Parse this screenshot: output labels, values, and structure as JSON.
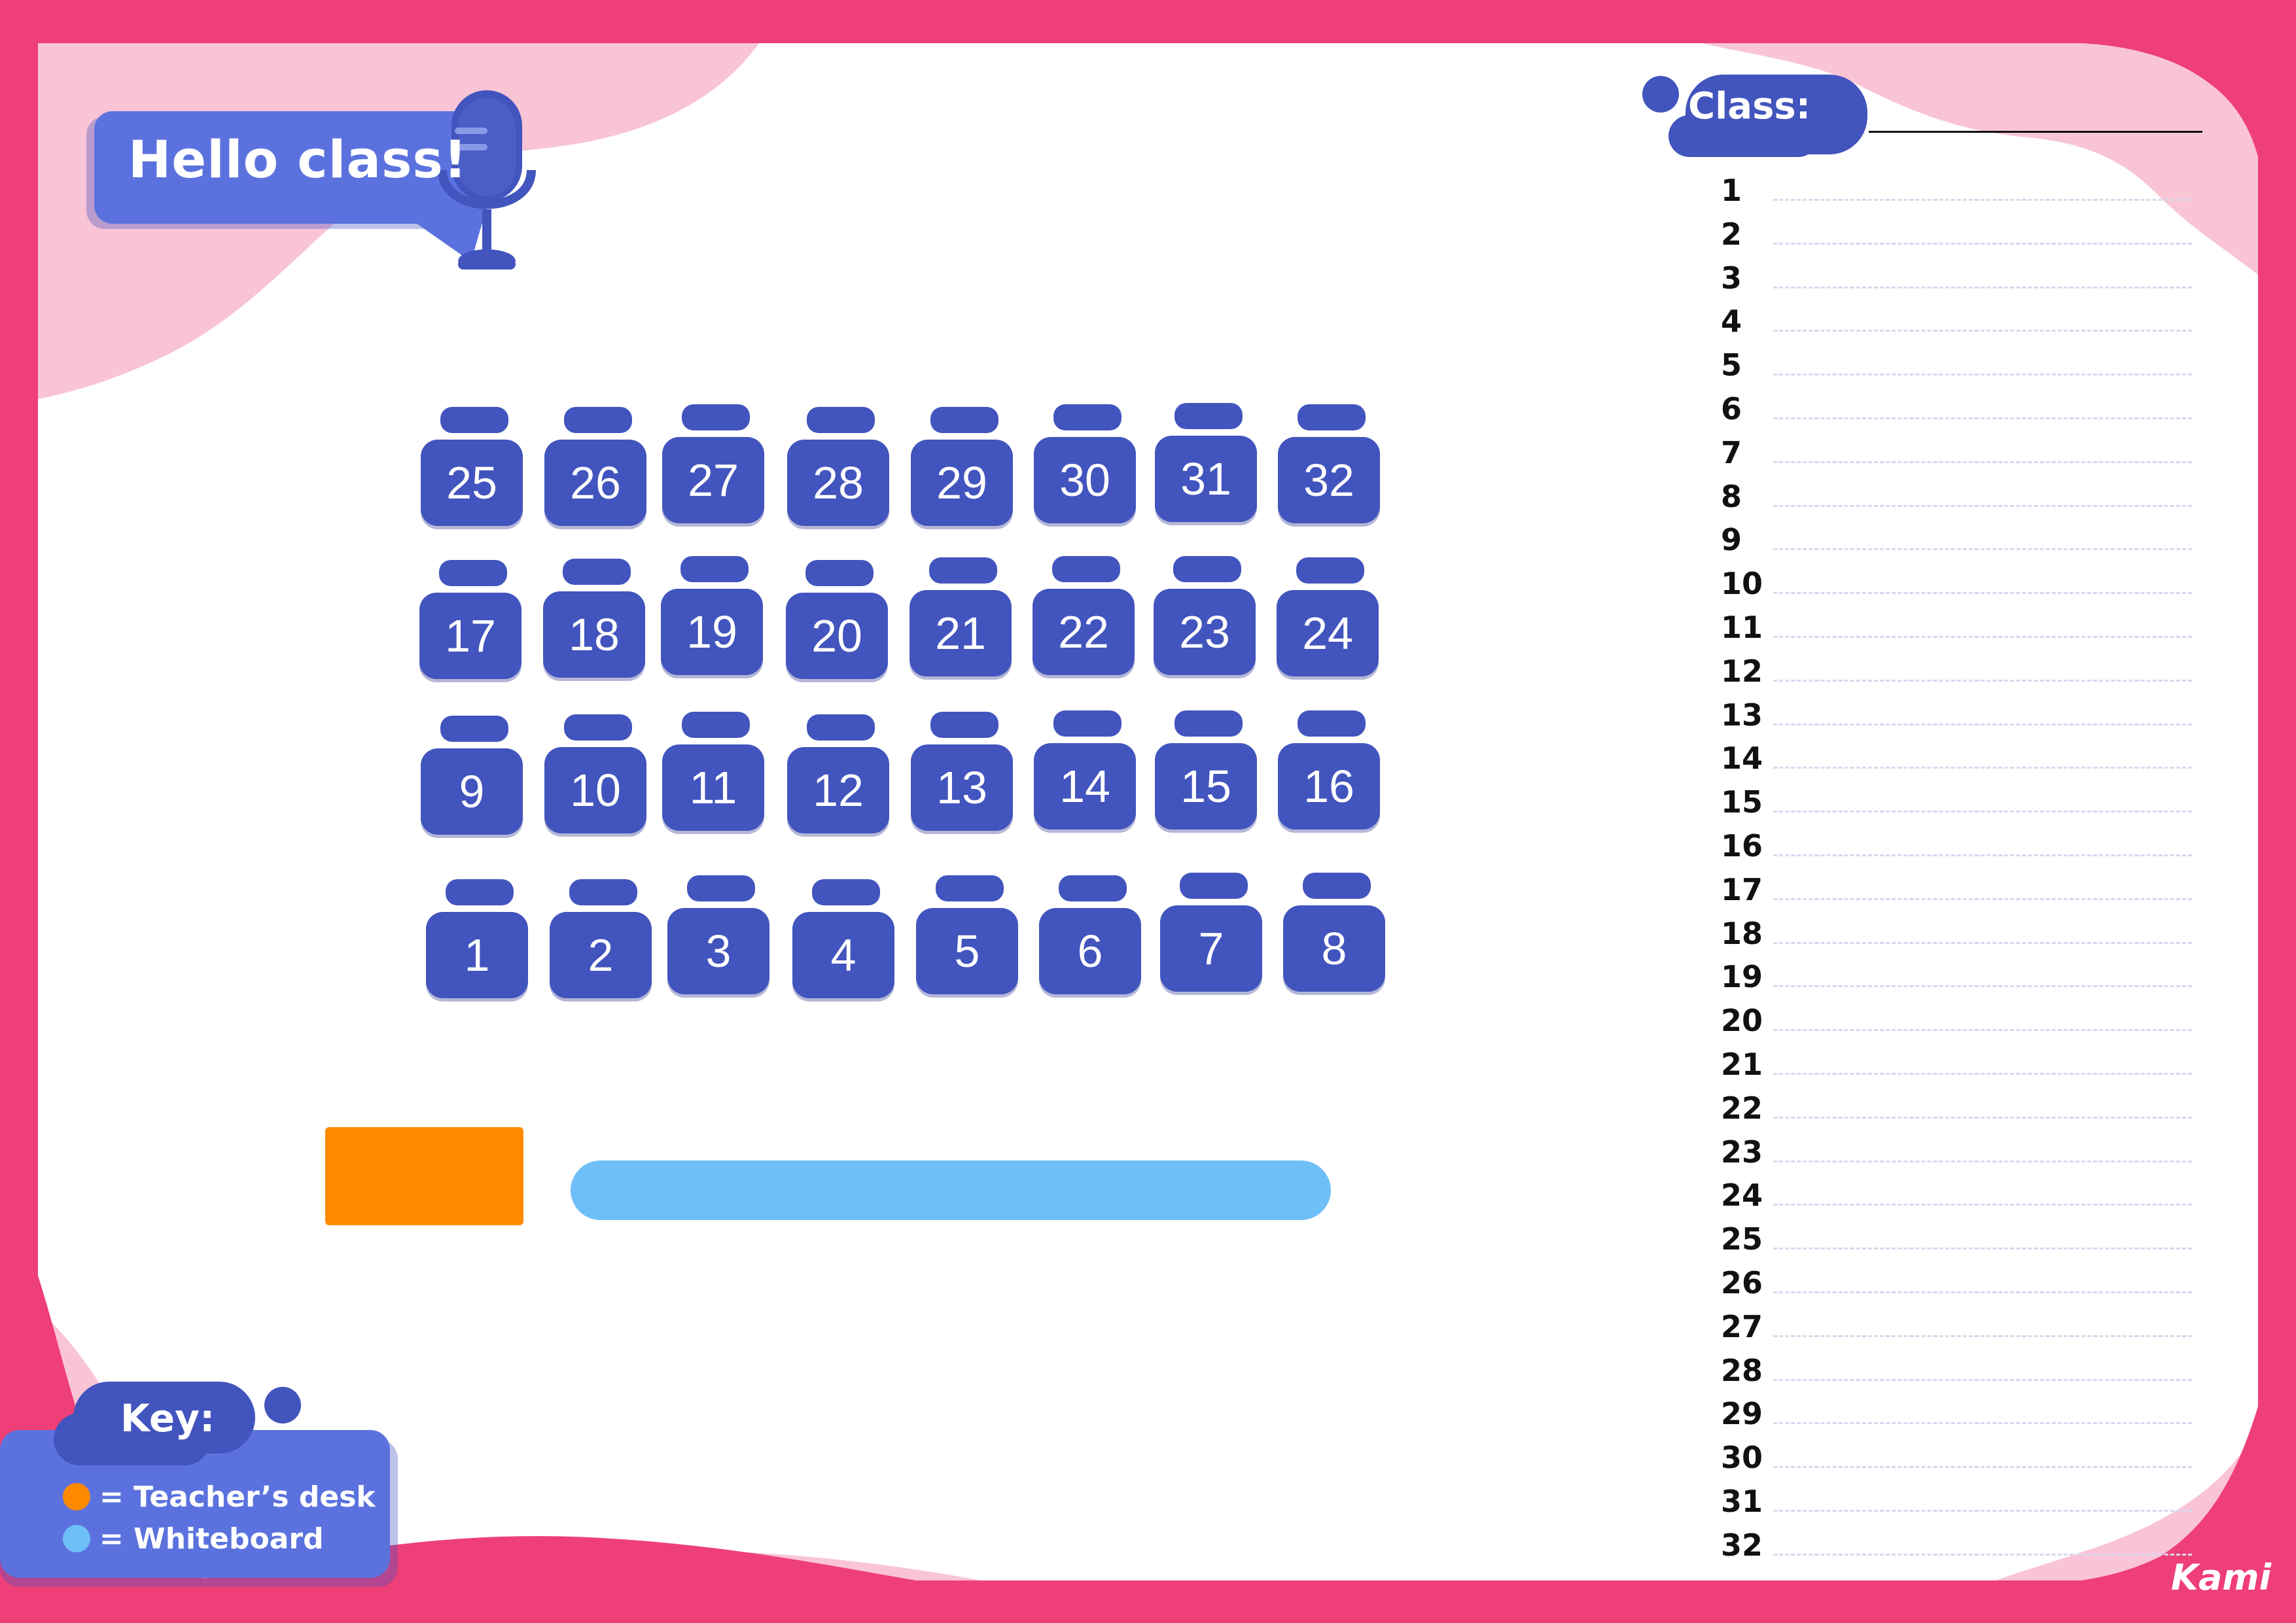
{
  "colors": {
    "frame": "#ee3f78",
    "blob": "#f9c4d6",
    "desk": "#4254bd",
    "badge": "#5b72de",
    "teacher_desk": "#ff8a00",
    "whiteboard": "#6ebff7"
  },
  "header": {
    "title": "Hello class!",
    "icon": "microphone-icon"
  },
  "seating": {
    "rows": [
      [
        "25",
        "26",
        "27",
        "28",
        "29",
        "30",
        "31",
        "32"
      ],
      [
        "17",
        "18",
        "19",
        "20",
        "21",
        "22",
        "23",
        "24"
      ],
      [
        "9",
        "10",
        "11",
        "12",
        "13",
        "14",
        "15",
        "16"
      ],
      [
        "1",
        "2",
        "3",
        "4",
        "5",
        "6",
        "7",
        "8"
      ]
    ]
  },
  "class_list": {
    "label": "Class:",
    "numbers": [
      "1",
      "2",
      "3",
      "4",
      "5",
      "6",
      "7",
      "8",
      "9",
      "10",
      "11",
      "12",
      "13",
      "14",
      "15",
      "16",
      "17",
      "18",
      "19",
      "20",
      "21",
      "22",
      "23",
      "24",
      "25",
      "26",
      "27",
      "28",
      "29",
      "30",
      "31",
      "32"
    ]
  },
  "key": {
    "label": "Key:",
    "items": [
      {
        "text": "= Teacher’s desk",
        "color": "#ff8a00"
      },
      {
        "text": "= Whiteboard",
        "color": "#6ebff7"
      }
    ]
  },
  "brand": "Kami"
}
